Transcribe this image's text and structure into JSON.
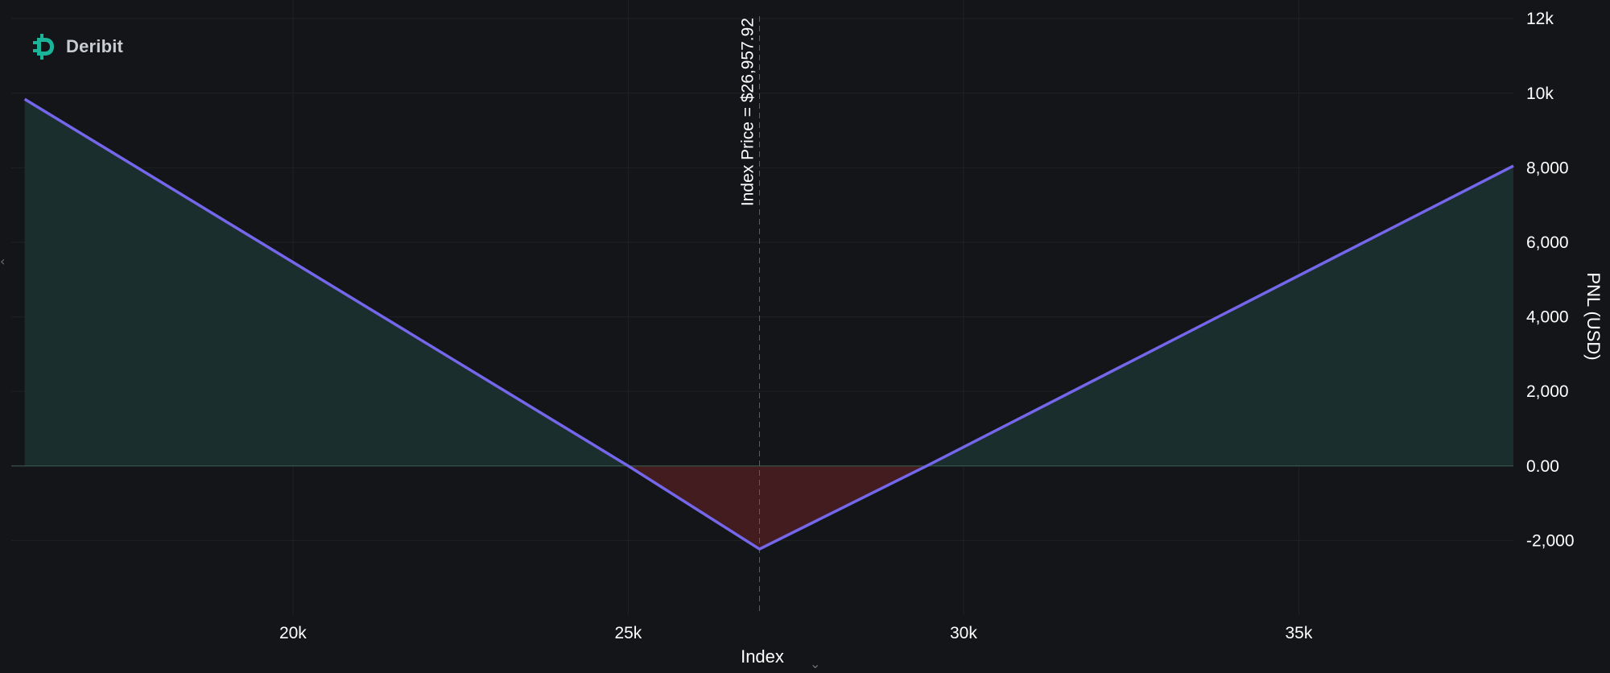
{
  "brand": {
    "name": "Deribit",
    "logo_color": "#1bb39a",
    "logo_icon": "deribit-logo-icon"
  },
  "colors": {
    "background": "#141518",
    "line": "#7567ec",
    "profit_fill": "#1a2e2e",
    "loss_fill": "#431c1f",
    "zero_line": "#3b5a4c",
    "grid": "#1f2125",
    "annotation_line": "#5a5c60"
  },
  "chart_data": {
    "type": "area",
    "title": "",
    "xlabel": "Index",
    "ylabel": "PNL (USD)",
    "xlim": [
      15800,
      38200
    ],
    "ylim": [
      -4000,
      12500
    ],
    "x_ticks": [
      {
        "value": 20000,
        "label": "20k"
      },
      {
        "value": 25000,
        "label": "25k"
      },
      {
        "value": 30000,
        "label": "30k"
      },
      {
        "value": 35000,
        "label": "35k"
      }
    ],
    "y_ticks": [
      {
        "value": 12000,
        "label": "12k"
      },
      {
        "value": 10000,
        "label": "10k"
      },
      {
        "value": 8000,
        "label": "8,000"
      },
      {
        "value": 6000,
        "label": "6,000"
      },
      {
        "value": 4000,
        "label": "4,000"
      },
      {
        "value": 2000,
        "label": "2,000"
      },
      {
        "value": 0,
        "label": "0.00"
      },
      {
        "value": -2000,
        "label": "-2,000"
      }
    ],
    "series": [
      {
        "x": [
          16000,
          25000,
          26957.92,
          29450,
          38200
        ],
        "y": [
          9840,
          0,
          -2230,
          0,
          8050
        ]
      }
    ],
    "annotations": [
      {
        "x": 26957.92,
        "text": "Index Price = $26,957.92"
      }
    ],
    "grid": true,
    "legend": "none"
  }
}
